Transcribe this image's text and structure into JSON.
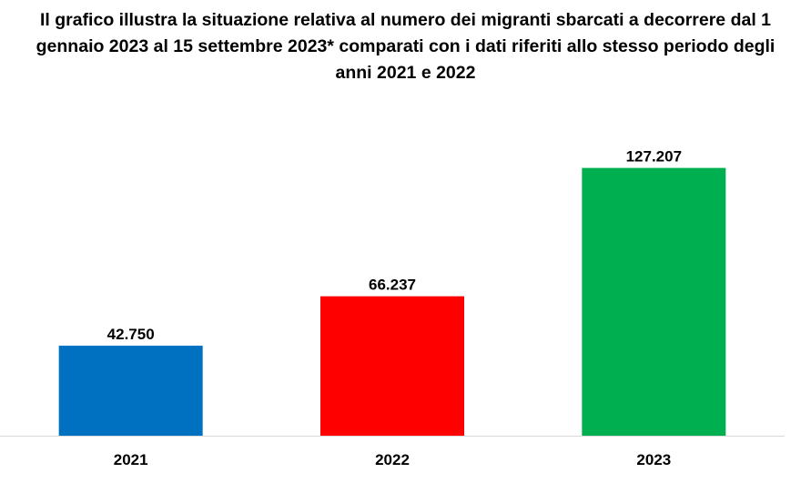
{
  "chart_data": {
    "type": "bar",
    "title": "Il grafico illustra la situazione relativa al numero dei migranti sbarcati a decorrere dal 1 gennaio 2023 al 15 settembre 2023* comparati con i dati riferiti allo stesso periodo degli anni 2021 e 2022",
    "categories": [
      "2021",
      "2022",
      "2023"
    ],
    "values": [
      42750,
      66237,
      127207
    ],
    "value_labels": [
      "42.750",
      "66.237",
      "127.207"
    ],
    "colors": [
      "#0070C0",
      "#FF0000",
      "#00B050"
    ],
    "xlabel": "",
    "ylabel": "",
    "ylim": [
      0,
      140000
    ],
    "grid": false,
    "legend": "none"
  }
}
